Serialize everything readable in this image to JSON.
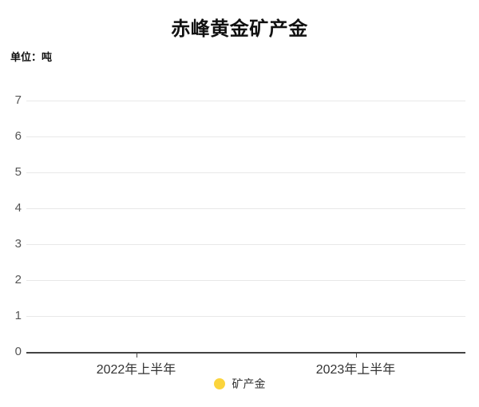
{
  "header": {
    "title": "赤峰黄金矿产金",
    "unit_label": "单位：吨"
  },
  "legend": {
    "items": [
      {
        "label": "矿产金",
        "marker_color": "#fbd43c",
        "marker_shape": "circle"
      }
    ]
  },
  "chart_data": {
    "type": "bar",
    "title": "赤峰黄金矿产金",
    "unit": "吨",
    "categories": [
      "2022年上半年",
      "2023年上半年"
    ],
    "series": [
      {
        "name": "矿产金",
        "values": [
          null,
          null
        ]
      }
    ],
    "xlabel": "",
    "ylabel": "",
    "ylim": [
      0,
      7
    ],
    "yticks": [
      0,
      1,
      2,
      3,
      4,
      5,
      6,
      7
    ],
    "grid": true,
    "legend_position": "bottom"
  },
  "colors": {
    "title": "#111111",
    "y_axis_label": "#555555",
    "x_axis_label": "#333333",
    "gridline": "#e8e8e8",
    "axis_line": "#444444",
    "legend_marker": "#fbd43c",
    "legend_text": "#333333"
  }
}
